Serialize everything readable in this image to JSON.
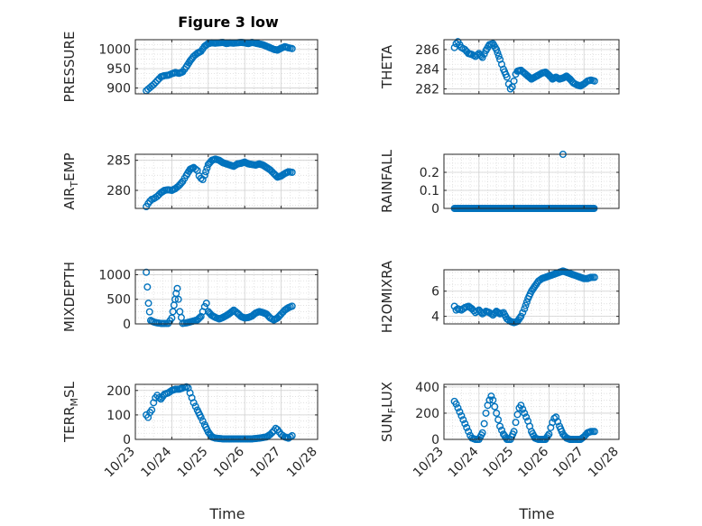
{
  "figure_title": "Figure 3 low",
  "x_axis_label": "Time",
  "x_tick_labels": [
    "10/23",
    "10/24",
    "10/25",
    "10/26",
    "10/27",
    "10/28"
  ],
  "marker_color": "#0072BD",
  "axes_color": "#262626",
  "chart_data": [
    {
      "type": "scatter",
      "name": "PRESSURE",
      "ylabel": "PRESSURE",
      "yticks": [
        900,
        950,
        1000
      ],
      "ylim": [
        885,
        1025
      ],
      "xlim": [
        0,
        5
      ],
      "grid": true,
      "x": [
        0.3,
        0.35,
        0.4,
        0.45,
        0.5,
        0.55,
        0.6,
        0.65,
        0.7,
        0.8,
        0.9,
        1.0,
        1.1,
        1.2,
        1.3,
        1.4,
        1.5,
        1.6,
        1.7,
        1.8,
        1.9,
        2.0,
        2.1,
        2.2,
        2.3,
        2.4,
        2.5,
        2.6,
        2.7,
        2.8,
        2.9,
        3.0,
        3.1,
        3.2,
        3.3,
        3.4,
        3.5,
        3.6,
        3.7,
        3.8,
        3.9,
        4.0,
        4.1,
        4.2,
        4.3
      ],
      "y": [
        893,
        897,
        901,
        905,
        909,
        914,
        919,
        924,
        929,
        932,
        933,
        937,
        940,
        938,
        942,
        955,
        970,
        982,
        990,
        995,
        1008,
        1015,
        1017,
        1016,
        1017,
        1018,
        1015,
        1017,
        1016,
        1017,
        1018,
        1017,
        1015,
        1018,
        1016,
        1014,
        1012,
        1008,
        1004,
        1000,
        998,
        1003,
        1007,
        1004,
        1002
      ]
    },
    {
      "type": "scatter",
      "name": "THETA",
      "ylabel": "THETA",
      "yticks": [
        282,
        284,
        286
      ],
      "ylim": [
        281.5,
        287
      ],
      "xlim": [
        0,
        5
      ],
      "grid": true,
      "x": [
        0.3,
        0.35,
        0.4,
        0.45,
        0.5,
        0.6,
        0.7,
        0.8,
        0.9,
        1.0,
        1.1,
        1.2,
        1.3,
        1.4,
        1.5,
        1.6,
        1.7,
        1.8,
        1.85,
        1.9,
        1.95,
        2.0,
        2.05,
        2.1,
        2.2,
        2.3,
        2.4,
        2.5,
        2.6,
        2.7,
        2.8,
        2.9,
        3.0,
        3.1,
        3.2,
        3.3,
        3.4,
        3.5,
        3.6,
        3.7,
        3.8,
        3.9,
        4.0,
        4.1,
        4.2,
        4.3
      ],
      "y": [
        286.2,
        286.6,
        286.8,
        286.5,
        286.2,
        286.0,
        285.6,
        285.5,
        285.3,
        285.6,
        285.2,
        285.9,
        286.5,
        286.6,
        286.0,
        285.0,
        284.0,
        283.2,
        282.5,
        282.0,
        282.2,
        282.8,
        283.5,
        283.8,
        283.9,
        283.6,
        283.3,
        283.0,
        283.2,
        283.4,
        283.6,
        283.7,
        283.4,
        283.0,
        283.2,
        283.0,
        283.1,
        283.3,
        283.0,
        282.6,
        282.4,
        282.3,
        282.5,
        282.8,
        282.9,
        282.8
      ]
    },
    {
      "type": "scatter",
      "name": "AIR_TEMP",
      "ylabel": "AIR_TEMP",
      "ylabel_main": "AIR",
      "ylabel_sub": "T",
      "ylabel_rest": "EMP",
      "yticks": [
        280,
        285
      ],
      "ylim": [
        277,
        286
      ],
      "xlim": [
        0,
        5
      ],
      "grid": true,
      "x": [
        0.3,
        0.35,
        0.4,
        0.45,
        0.5,
        0.6,
        0.7,
        0.8,
        0.9,
        1.0,
        1.1,
        1.2,
        1.3,
        1.4,
        1.5,
        1.6,
        1.7,
        1.75,
        1.8,
        1.85,
        1.9,
        2.0,
        2.1,
        2.2,
        2.3,
        2.4,
        2.5,
        2.6,
        2.7,
        2.8,
        2.9,
        3.0,
        3.1,
        3.2,
        3.3,
        3.4,
        3.5,
        3.6,
        3.7,
        3.8,
        3.9,
        4.0,
        4.1,
        4.2,
        4.3
      ],
      "y": [
        277.3,
        277.8,
        278.2,
        278.5,
        278.6,
        279.0,
        279.6,
        280.0,
        280.1,
        280.0,
        280.3,
        280.8,
        281.5,
        282.5,
        283.5,
        283.8,
        283.3,
        282.4,
        282.0,
        281.8,
        282.5,
        284.3,
        285.0,
        285.2,
        285.0,
        284.6,
        284.4,
        284.2,
        284.0,
        284.4,
        284.5,
        284.7,
        284.4,
        284.3,
        284.2,
        284.4,
        284.2,
        283.8,
        283.4,
        282.8,
        282.2,
        282.4,
        282.8,
        283.1,
        283.0
      ]
    },
    {
      "type": "scatter",
      "name": "RAINFALL",
      "ylabel": "RAINFALL",
      "yticks": [
        0,
        0.1,
        0.2
      ],
      "ylim": [
        0,
        0.3
      ],
      "xlim": [
        0,
        5
      ],
      "grid": true,
      "x_start": 0.3,
      "x_end": 4.3,
      "baseline": 0,
      "spike_x": 3.4,
      "spike_y": 0.3
    },
    {
      "type": "scatter",
      "name": "MIXDEPTH",
      "ylabel": "MIXDEPTH",
      "yticks": [
        0,
        500,
        1000
      ],
      "ylim": [
        0,
        1100
      ],
      "xlim": [
        0,
        5
      ],
      "grid": true,
      "x": [
        0.3,
        0.33,
        0.36,
        0.42,
        0.5,
        0.6,
        0.7,
        0.8,
        0.9,
        1.0,
        1.03,
        1.06,
        1.09,
        1.12,
        1.15,
        1.18,
        1.22,
        1.3,
        1.4,
        1.5,
        1.6,
        1.7,
        1.8,
        1.85,
        1.9,
        1.95,
        2.0,
        2.1,
        2.2,
        2.3,
        2.4,
        2.5,
        2.6,
        2.7,
        2.8,
        2.9,
        3.0,
        3.1,
        3.2,
        3.3,
        3.4,
        3.5,
        3.6,
        3.7,
        3.8,
        3.9,
        4.0,
        4.1,
        4.2,
        4.3
      ],
      "y": [
        1050,
        750,
        420,
        70,
        40,
        20,
        10,
        10,
        10,
        120,
        250,
        380,
        500,
        620,
        720,
        500,
        250,
        10,
        20,
        40,
        60,
        80,
        150,
        250,
        350,
        420,
        250,
        170,
        130,
        100,
        130,
        170,
        220,
        280,
        220,
        150,
        120,
        130,
        160,
        220,
        250,
        230,
        200,
        120,
        80,
        120,
        200,
        280,
        330,
        360
      ]
    },
    {
      "type": "scatter",
      "name": "H2OMIXRA",
      "ylabel": "H2OMIXRA",
      "yticks": [
        4,
        6
      ],
      "ylim": [
        3.4,
        7.7
      ],
      "xlim": [
        0,
        5
      ],
      "grid": true,
      "x": [
        0.3,
        0.35,
        0.4,
        0.5,
        0.6,
        0.7,
        0.8,
        0.9,
        1.0,
        1.1,
        1.2,
        1.3,
        1.4,
        1.5,
        1.6,
        1.7,
        1.8,
        1.9,
        2.0,
        2.1,
        2.2,
        2.3,
        2.4,
        2.5,
        2.6,
        2.7,
        2.8,
        2.9,
        3.0,
        3.1,
        3.2,
        3.3,
        3.4,
        3.5,
        3.6,
        3.7,
        3.8,
        3.9,
        4.0,
        4.1,
        4.2,
        4.3
      ],
      "y": [
        4.8,
        4.5,
        4.6,
        4.5,
        4.7,
        4.8,
        4.6,
        4.3,
        4.5,
        4.2,
        4.4,
        4.3,
        4.1,
        4.4,
        4.2,
        4.3,
        3.8,
        3.6,
        3.5,
        3.6,
        4.0,
        4.6,
        5.4,
        6.0,
        6.4,
        6.8,
        7.0,
        7.1,
        7.2,
        7.3,
        7.4,
        7.5,
        7.6,
        7.5,
        7.4,
        7.3,
        7.2,
        7.1,
        7.0,
        7.0,
        7.1,
        7.1
      ]
    },
    {
      "type": "scatter",
      "name": "TERR_MSL",
      "ylabel": "TERR_MSL",
      "ylabel_main": "TERR",
      "ylabel_sub": "M",
      "ylabel_rest": "SL",
      "yticks": [
        0,
        100,
        200
      ],
      "ylim": [
        0,
        225
      ],
      "xlim": [
        0,
        5
      ],
      "grid": true,
      "x": [
        0.3,
        0.35,
        0.4,
        0.45,
        0.5,
        0.55,
        0.6,
        0.65,
        0.7,
        0.8,
        0.9,
        1.0,
        1.1,
        1.2,
        1.3,
        1.4,
        1.45,
        1.5,
        1.55,
        1.6,
        1.7,
        1.8,
        1.9,
        2.0,
        2.1,
        2.2,
        2.4,
        2.6,
        2.8,
        3.0,
        3.2,
        3.4,
        3.6,
        3.7,
        3.8,
        3.85,
        3.9,
        3.95,
        4.0,
        4.1,
        4.2,
        4.3
      ],
      "y": [
        100,
        90,
        110,
        120,
        150,
        170,
        180,
        170,
        165,
        185,
        190,
        200,
        205,
        205,
        210,
        215,
        210,
        190,
        170,
        150,
        120,
        90,
        60,
        30,
        10,
        5,
        2,
        2,
        2,
        2,
        2,
        5,
        10,
        20,
        35,
        45,
        40,
        30,
        20,
        10,
        5,
        15
      ]
    },
    {
      "type": "scatter",
      "name": "SUN_FLUX",
      "ylabel": "SUN_FLUX",
      "ylabel_main": "SUN",
      "ylabel_sub": "F",
      "ylabel_rest": "LUX",
      "yticks": [
        0,
        200,
        400
      ],
      "ylim": [
        0,
        420
      ],
      "xlim": [
        0,
        5
      ],
      "grid": true,
      "x": [
        0.3,
        0.35,
        0.4,
        0.45,
        0.5,
        0.55,
        0.6,
        0.65,
        0.7,
        0.75,
        0.8,
        0.9,
        1.0,
        1.1,
        1.15,
        1.2,
        1.25,
        1.3,
        1.35,
        1.4,
        1.45,
        1.5,
        1.55,
        1.6,
        1.7,
        1.8,
        1.9,
        2.0,
        2.05,
        2.1,
        2.15,
        2.2,
        2.25,
        2.3,
        2.35,
        2.4,
        2.45,
        2.5,
        2.6,
        2.7,
        2.8,
        2.9,
        3.0,
        3.05,
        3.1,
        3.15,
        3.2,
        3.3,
        3.4,
        3.5,
        3.6,
        3.7,
        3.8,
        3.9,
        4.0,
        4.1,
        4.2,
        4.3
      ],
      "y": [
        290,
        270,
        240,
        210,
        180,
        150,
        120,
        90,
        60,
        30,
        10,
        0,
        0,
        50,
        120,
        200,
        260,
        300,
        330,
        300,
        250,
        200,
        150,
        100,
        40,
        0,
        0,
        60,
        130,
        190,
        240,
        260,
        230,
        200,
        170,
        140,
        100,
        60,
        10,
        0,
        0,
        0,
        40,
        90,
        130,
        160,
        170,
        100,
        40,
        10,
        0,
        0,
        0,
        0,
        20,
        50,
        60,
        60
      ]
    }
  ]
}
